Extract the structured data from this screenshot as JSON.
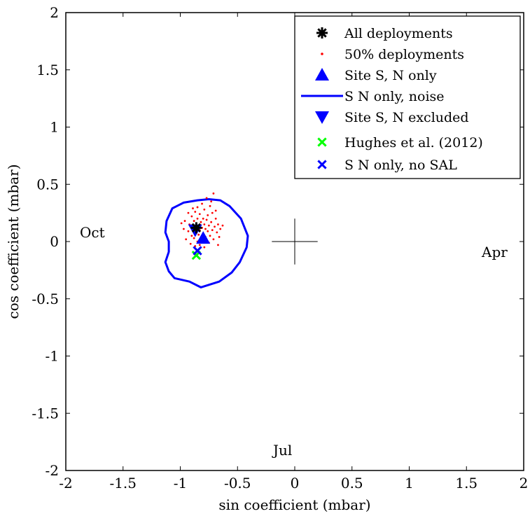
{
  "chart_data": {
    "type": "scatter",
    "title": "",
    "xlabel": "sin coefficient (mbar)",
    "ylabel": "cos coefficient (mbar)",
    "xlim": [
      -2,
      2
    ],
    "ylim": [
      -2,
      2
    ],
    "xticks": [
      -2,
      -1.5,
      -1,
      -0.5,
      0,
      0.5,
      1,
      1.5,
      2
    ],
    "yticks": [
      -2,
      -1.5,
      -1,
      -0.5,
      0,
      0.5,
      1,
      1.5,
      2
    ],
    "xtick_labels": [
      "-2",
      "-1.5",
      "-1",
      "-0.5",
      "0",
      "0.5",
      "1",
      "1.5",
      "2"
    ],
    "ytick_labels": [
      "-2",
      "-1.5",
      "-1",
      "-0.5",
      "0",
      "0.5",
      "1",
      "1.5",
      "2"
    ],
    "grid": false,
    "legend_position": "top-right",
    "annotations": [
      {
        "text": "Oct",
        "x": -1.8,
        "y": 0.07
      },
      {
        "text": "Apr",
        "x": 1.8,
        "y": -0.1
      },
      {
        "text": "Jul",
        "x": -0.1,
        "y": -1.8
      }
    ],
    "crosshair": {
      "x": 0,
      "y": 0,
      "half_width": 0.2,
      "half_height": 0.2
    },
    "series": [
      {
        "name": "All deployments",
        "marker": "asterisk",
        "color": "#000000",
        "points": [
          [
            -0.86,
            0.12
          ]
        ]
      },
      {
        "name": "50% deployments",
        "marker": "dot",
        "color": "#ff0000",
        "points": [
          [
            -0.96,
            0.18
          ],
          [
            -0.93,
            0.09
          ],
          [
            -0.92,
            0.15
          ],
          [
            -0.9,
            0.05
          ],
          [
            -0.9,
            0.22
          ],
          [
            -0.89,
            0.12
          ],
          [
            -0.88,
            0.18
          ],
          [
            -0.88,
            0.03
          ],
          [
            -0.87,
            0.26
          ],
          [
            -0.86,
            0.08
          ],
          [
            -0.86,
            0.16
          ],
          [
            -0.85,
            0.2
          ],
          [
            -0.85,
            0.0
          ],
          [
            -0.84,
            0.13
          ],
          [
            -0.84,
            0.06
          ],
          [
            -0.83,
            0.24
          ],
          [
            -0.83,
            0.1
          ],
          [
            -0.82,
            0.17
          ],
          [
            -0.82,
            0.02
          ],
          [
            -0.81,
            0.12
          ],
          [
            -0.8,
            0.2
          ],
          [
            -0.8,
            0.07
          ],
          [
            -0.79,
            0.15
          ],
          [
            -0.79,
            0.28
          ],
          [
            -0.78,
            0.04
          ],
          [
            -0.78,
            0.11
          ],
          [
            -0.77,
            0.19
          ],
          [
            -0.76,
            0.09
          ],
          [
            -0.76,
            0.23
          ],
          [
            -0.75,
            0.14
          ],
          [
            -0.74,
            0.05
          ],
          [
            -0.74,
            0.31
          ],
          [
            -0.73,
            0.17
          ],
          [
            -0.72,
            0.1
          ],
          [
            -0.72,
            0.25
          ],
          [
            -0.71,
            0.02
          ],
          [
            -0.7,
            0.13
          ],
          [
            -0.69,
            0.2
          ],
          [
            -0.68,
            0.08
          ],
          [
            -0.67,
            0.15
          ],
          [
            -0.66,
            0.04
          ],
          [
            -0.93,
            0.25
          ],
          [
            -0.91,
            -0.02
          ],
          [
            -0.87,
            -0.04
          ],
          [
            -0.83,
            -0.03
          ],
          [
            -0.75,
            -0.01
          ],
          [
            -0.73,
            0.35
          ],
          [
            -0.71,
            0.42
          ],
          [
            -0.65,
            0.11
          ],
          [
            -0.97,
            0.11
          ],
          [
            -0.95,
            0.02
          ],
          [
            -0.89,
            0.29
          ],
          [
            -0.81,
            0.33
          ],
          [
            -0.77,
            0.38
          ],
          [
            -0.69,
            0.27
          ],
          [
            -0.67,
            -0.03
          ],
          [
            -0.99,
            0.16
          ],
          [
            -0.85,
            0.3
          ],
          [
            -0.79,
            -0.05
          ],
          [
            -0.63,
            0.14
          ]
        ]
      },
      {
        "name": "Site S, N only",
        "marker": "triangle-up",
        "color": "#0000ff",
        "points": [
          [
            -0.8,
            0.03
          ]
        ]
      },
      {
        "name": "S N only, noise",
        "marker": "line",
        "color": "#0000ff",
        "points": [
          [
            -0.85,
            0.36
          ],
          [
            -0.75,
            0.37
          ],
          [
            -0.65,
            0.36
          ],
          [
            -0.57,
            0.31
          ],
          [
            -0.47,
            0.2
          ],
          [
            -0.41,
            0.05
          ],
          [
            -0.42,
            -0.05
          ],
          [
            -0.48,
            -0.18
          ],
          [
            -0.55,
            -0.27
          ],
          [
            -0.66,
            -0.35
          ],
          [
            -0.82,
            -0.4
          ],
          [
            -0.92,
            -0.35
          ],
          [
            -1.05,
            -0.32
          ],
          [
            -1.1,
            -0.26
          ],
          [
            -1.13,
            -0.18
          ],
          [
            -1.1,
            -0.09
          ],
          [
            -1.1,
            0.0
          ],
          [
            -1.13,
            0.08
          ],
          [
            -1.12,
            0.18
          ],
          [
            -1.07,
            0.29
          ],
          [
            -0.97,
            0.34
          ],
          [
            -0.85,
            0.36
          ]
        ]
      },
      {
        "name": "Site S, N excluded",
        "marker": "triangle-down",
        "color": "#0000ff",
        "points": [
          [
            -0.87,
            0.1
          ]
        ]
      },
      {
        "name": "Hughes et al. (2012)",
        "marker": "x",
        "color": "#00ff00",
        "points": [
          [
            -0.86,
            -0.12
          ]
        ]
      },
      {
        "name": "S N only, no SAL",
        "marker": "x",
        "color": "#0000ff",
        "points": [
          [
            -0.85,
            -0.08
          ]
        ]
      }
    ]
  }
}
